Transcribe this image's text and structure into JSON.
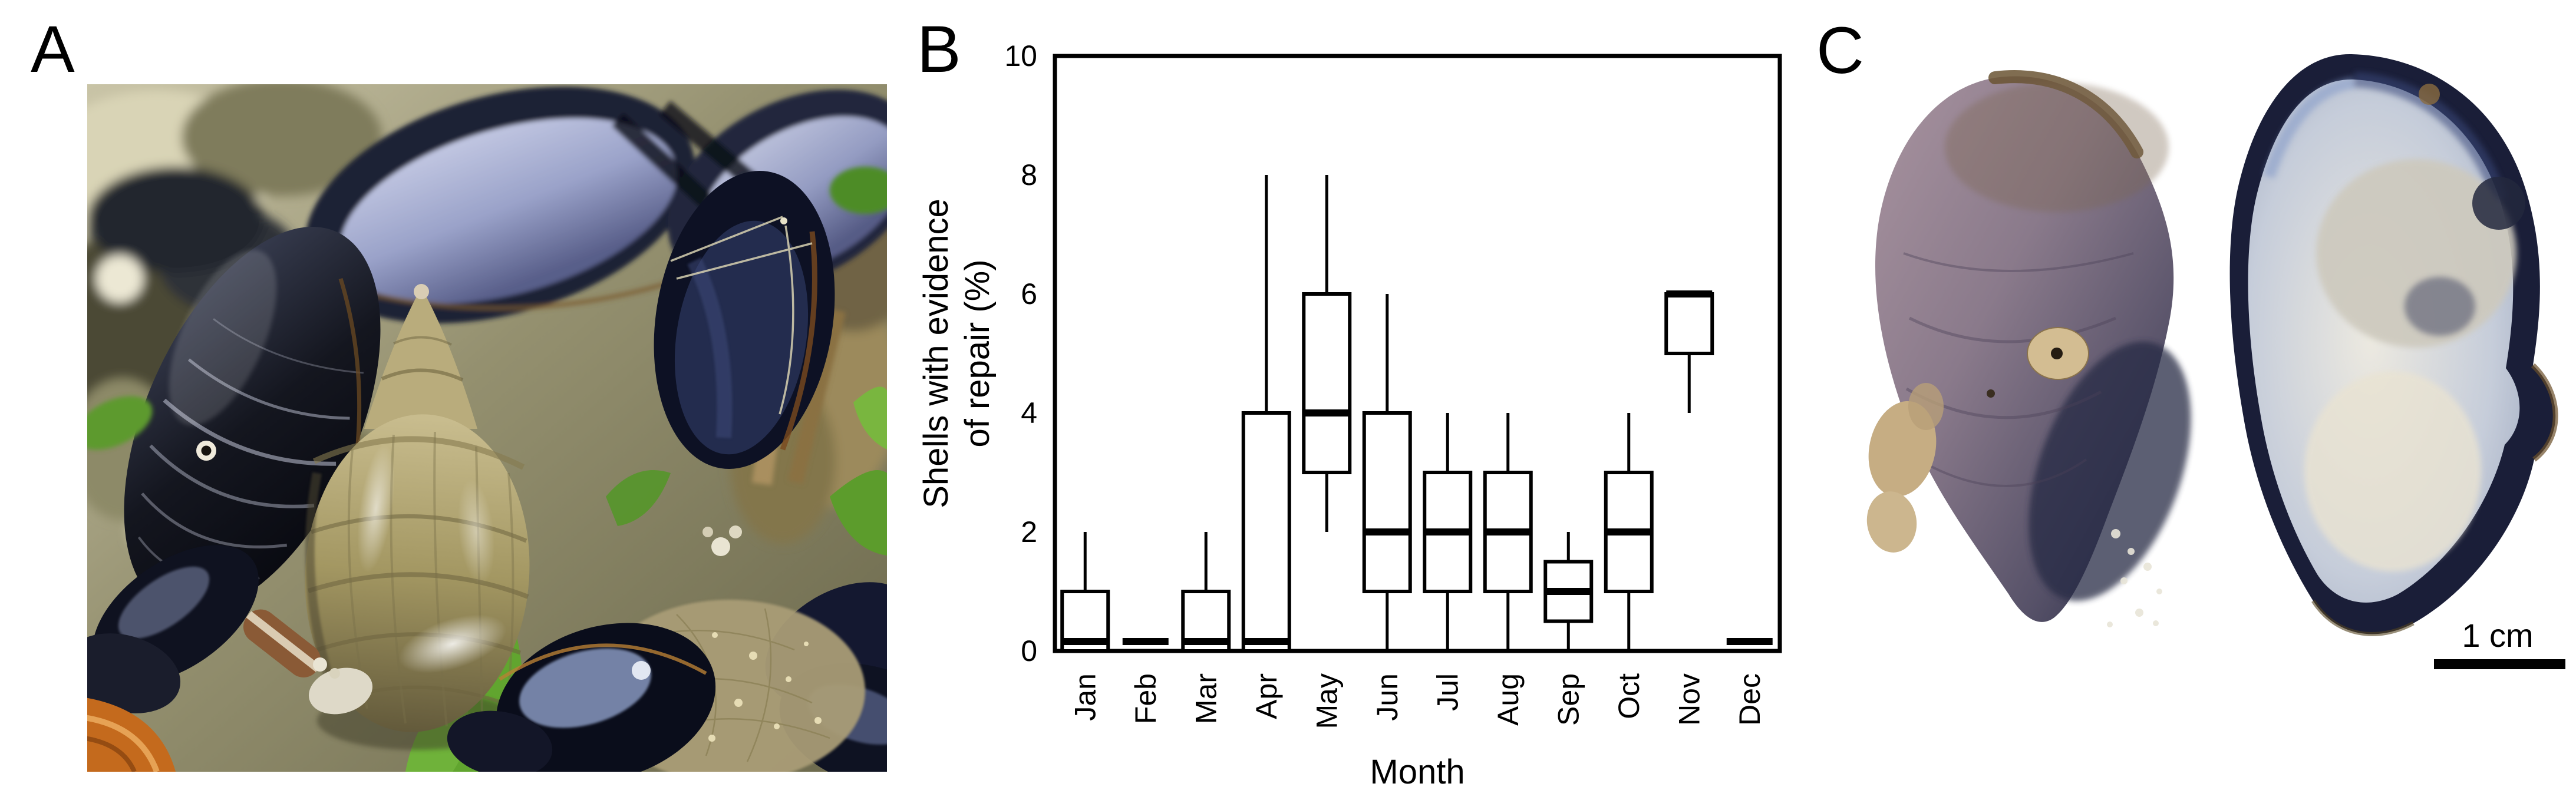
{
  "panels": {
    "a": {
      "label": "A"
    },
    "b": {
      "label": "B"
    },
    "c": {
      "label": "C",
      "scale_bar_label": "1 cm"
    }
  },
  "chart_data": {
    "type": "box",
    "title": "",
    "xlabel": "Month",
    "ylabel": "Shells with evidence of repair (%)",
    "ylabel_lines": [
      "Shells with evidence",
      "of repair (%)"
    ],
    "ylim": [
      0,
      10
    ],
    "yticks": [
      0,
      2,
      4,
      6,
      8,
      10
    ],
    "grid": false,
    "legend": "none",
    "categories": [
      "Jan",
      "Feb",
      "Mar",
      "Apr",
      "May",
      "Jun",
      "Jul",
      "Aug",
      "Sep",
      "Oct",
      "Nov",
      "Dec"
    ],
    "boxes": [
      {
        "month": "Jan",
        "whisker_low": 0,
        "q1": 0,
        "median": 0,
        "q3": 1,
        "whisker_high": 2
      },
      {
        "month": "Feb",
        "whisker_low": 0,
        "q1": 0,
        "median": 0,
        "q3": 0,
        "whisker_high": 0
      },
      {
        "month": "Mar",
        "whisker_low": 0,
        "q1": 0,
        "median": 0,
        "q3": 1,
        "whisker_high": 2
      },
      {
        "month": "Apr",
        "whisker_low": 0,
        "q1": 0,
        "median": 0,
        "q3": 4,
        "whisker_high": 8
      },
      {
        "month": "May",
        "whisker_low": 2,
        "q1": 3,
        "median": 4,
        "q3": 6,
        "whisker_high": 8
      },
      {
        "month": "Jun",
        "whisker_low": 0,
        "q1": 1,
        "median": 2,
        "q3": 4,
        "whisker_high": 6
      },
      {
        "month": "Jul",
        "whisker_low": 0,
        "q1": 1,
        "median": 2,
        "q3": 3,
        "whisker_high": 4
      },
      {
        "month": "Aug",
        "whisker_low": 0,
        "q1": 1,
        "median": 2,
        "q3": 3,
        "whisker_high": 4
      },
      {
        "month": "Sep",
        "whisker_low": 0,
        "q1": 0.5,
        "median": 1,
        "q3": 1.5,
        "whisker_high": 2
      },
      {
        "month": "Oct",
        "whisker_low": 0,
        "q1": 1,
        "median": 2,
        "q3": 3,
        "whisker_high": 4
      },
      {
        "month": "Nov",
        "whisker_low": 4,
        "q1": 5,
        "median": 6,
        "q3": 6,
        "whisker_high": 6
      },
      {
        "month": "Dec",
        "whisker_low": 0,
        "q1": 0,
        "median": 0,
        "q3": 0,
        "whisker_high": 0
      }
    ]
  },
  "colors": {
    "axis": "#000000",
    "box_fill": "#ffffff",
    "background": "#ffffff",
    "mussel_shell_dark": "#12152a",
    "mussel_nacre_blue": "#aab2d2",
    "dog_whelk_olive": "#a79a68",
    "seaweed_green": "#61a52f",
    "orange_shell": "#c46a1d",
    "shell_exterior_mauve": "#8d7c8d",
    "shell_interior_nacre": "#d6dae2"
  }
}
